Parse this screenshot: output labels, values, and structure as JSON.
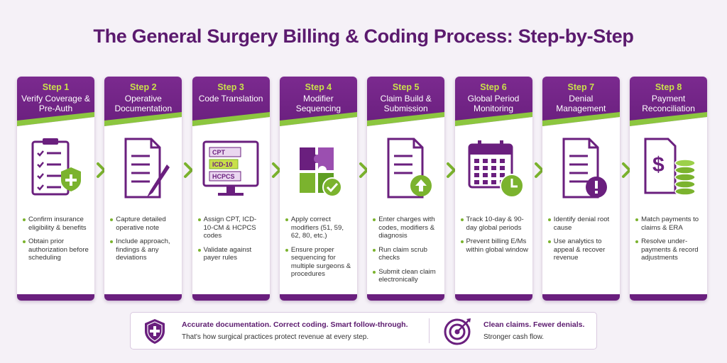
{
  "title": "The General Surgery Billing & Coding Process: Step-by-Step",
  "steps": [
    {
      "step": "Step 1",
      "title": "Verify Coverage & Pre-Auth",
      "bullets": [
        "Confirm insurance eligibility & benefits",
        "Obtain prior authorization before scheduling"
      ]
    },
    {
      "step": "Step 2",
      "title": "Operative Documentation",
      "bullets": [
        "Capture detailed operative note",
        "Include approach, findings & any deviations"
      ]
    },
    {
      "step": "Step 3",
      "title": "Code Translation",
      "icon_labels": [
        "CPT",
        "ICD-10",
        "HCPCS"
      ],
      "bullets": [
        "Assign CPT, ICD-10-CM & HCPCS codes",
        "Validate against payer rules"
      ]
    },
    {
      "step": "Step 4",
      "title": "Modifier Sequencing",
      "bullets": [
        "Apply correct modifiers (51, 59, 62, 80, etc.)",
        "Ensure proper sequencing for multiple surgeons & procedures"
      ]
    },
    {
      "step": "Step 5",
      "title": "Claim Build & Submission",
      "bullets": [
        "Enter charges with codes, modifiers & diagnosis",
        "Run claim scrub checks",
        "Submit clean claim electronically"
      ]
    },
    {
      "step": "Step 6",
      "title": "Global Period Monitoring",
      "bullets": [
        "Track 10-day & 90-day global periods",
        "Prevent billing E/Ms within global window"
      ]
    },
    {
      "step": "Step 7",
      "title": "Denial Management",
      "bullets": [
        "Identify denial root cause",
        "Use analytics to appeal & recover revenue"
      ]
    },
    {
      "step": "Step 8",
      "title": "Payment Reconciliation",
      "bullets": [
        "Match payments to claims & ERA",
        "Resolve under-payments & record adjustments"
      ]
    }
  ],
  "footer": {
    "left": {
      "headline": "Accurate documentation. Correct coding. Smart follow-through.",
      "text": "That's how surgical practices protect revenue at every step."
    },
    "right": {
      "headline": "Clean claims. Fewer denials.",
      "text": "Stronger cash flow."
    }
  }
}
